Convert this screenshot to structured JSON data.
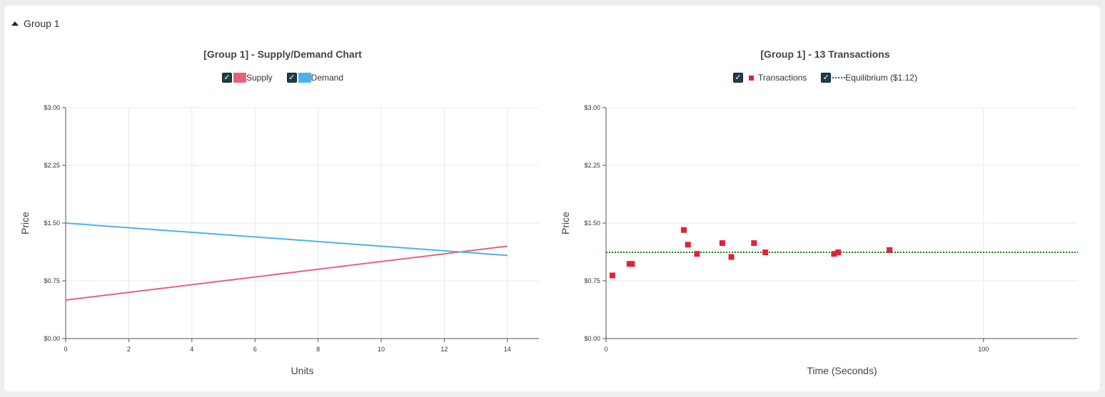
{
  "group": {
    "label": "Group 1"
  },
  "colors": {
    "supply": "#e8617a",
    "demand": "#4cb3e8",
    "transactions": "#e0223a",
    "equilibrium": "#1a7a1a"
  },
  "chart_data": [
    {
      "type": "line",
      "title": "[Group 1] - Supply/Demand Chart",
      "xlabel": "Units",
      "ylabel": "Price",
      "xlim": [
        0,
        15
      ],
      "ylim": [
        0,
        3
      ],
      "x_ticks": [
        "0",
        "2",
        "4",
        "6",
        "8",
        "10",
        "12",
        "14"
      ],
      "x_tick_values": [
        0,
        2,
        4,
        6,
        8,
        10,
        12,
        14
      ],
      "y_ticks": [
        "$0.00",
        "$0.75",
        "$1.50",
        "$2.25",
        "$3.00"
      ],
      "y_tick_values": [
        0,
        0.75,
        1.5,
        2.25,
        3
      ],
      "grid": true,
      "legend_position": "top-center",
      "series": [
        {
          "name": "Supply",
          "points": [
            [
              0,
              0.5
            ],
            [
              14,
              1.2
            ]
          ]
        },
        {
          "name": "Demand",
          "points": [
            [
              0,
              1.5
            ],
            [
              14,
              1.08
            ]
          ]
        }
      ]
    },
    {
      "type": "scatter",
      "title": "[Group 1] - 13 Transactions",
      "xlabel": "Time (Seconds)",
      "ylabel": "Price",
      "xlim": [
        0,
        125
      ],
      "ylim": [
        0,
        3
      ],
      "x_ticks": [
        "0",
        "100"
      ],
      "x_tick_values": [
        0,
        100
      ],
      "y_ticks": [
        "$0.00",
        "$0.75",
        "$1.50",
        "$2.25",
        "$3.00"
      ],
      "y_tick_values": [
        0,
        0.75,
        1.5,
        2.25,
        3
      ],
      "grid": true,
      "legend_position": "top-center",
      "series": [
        {
          "name": "Transactions",
          "points": [
            [
              1.7,
              0.82
            ],
            [
              6.2,
              0.97
            ],
            [
              6.9,
              0.97
            ],
            [
              20.6,
              1.41
            ],
            [
              21.7,
              1.22
            ],
            [
              24.1,
              1.1
            ],
            [
              30.8,
              1.24
            ],
            [
              33.2,
              1.06
            ],
            [
              39.2,
              1.24
            ],
            [
              42.2,
              1.12
            ],
            [
              60.4,
              1.1
            ],
            [
              61.5,
              1.12
            ],
            [
              75.1,
              1.15
            ]
          ]
        }
      ],
      "equilibrium": {
        "name": "Equilibrium ($1.12)",
        "value": 1.12
      }
    }
  ]
}
